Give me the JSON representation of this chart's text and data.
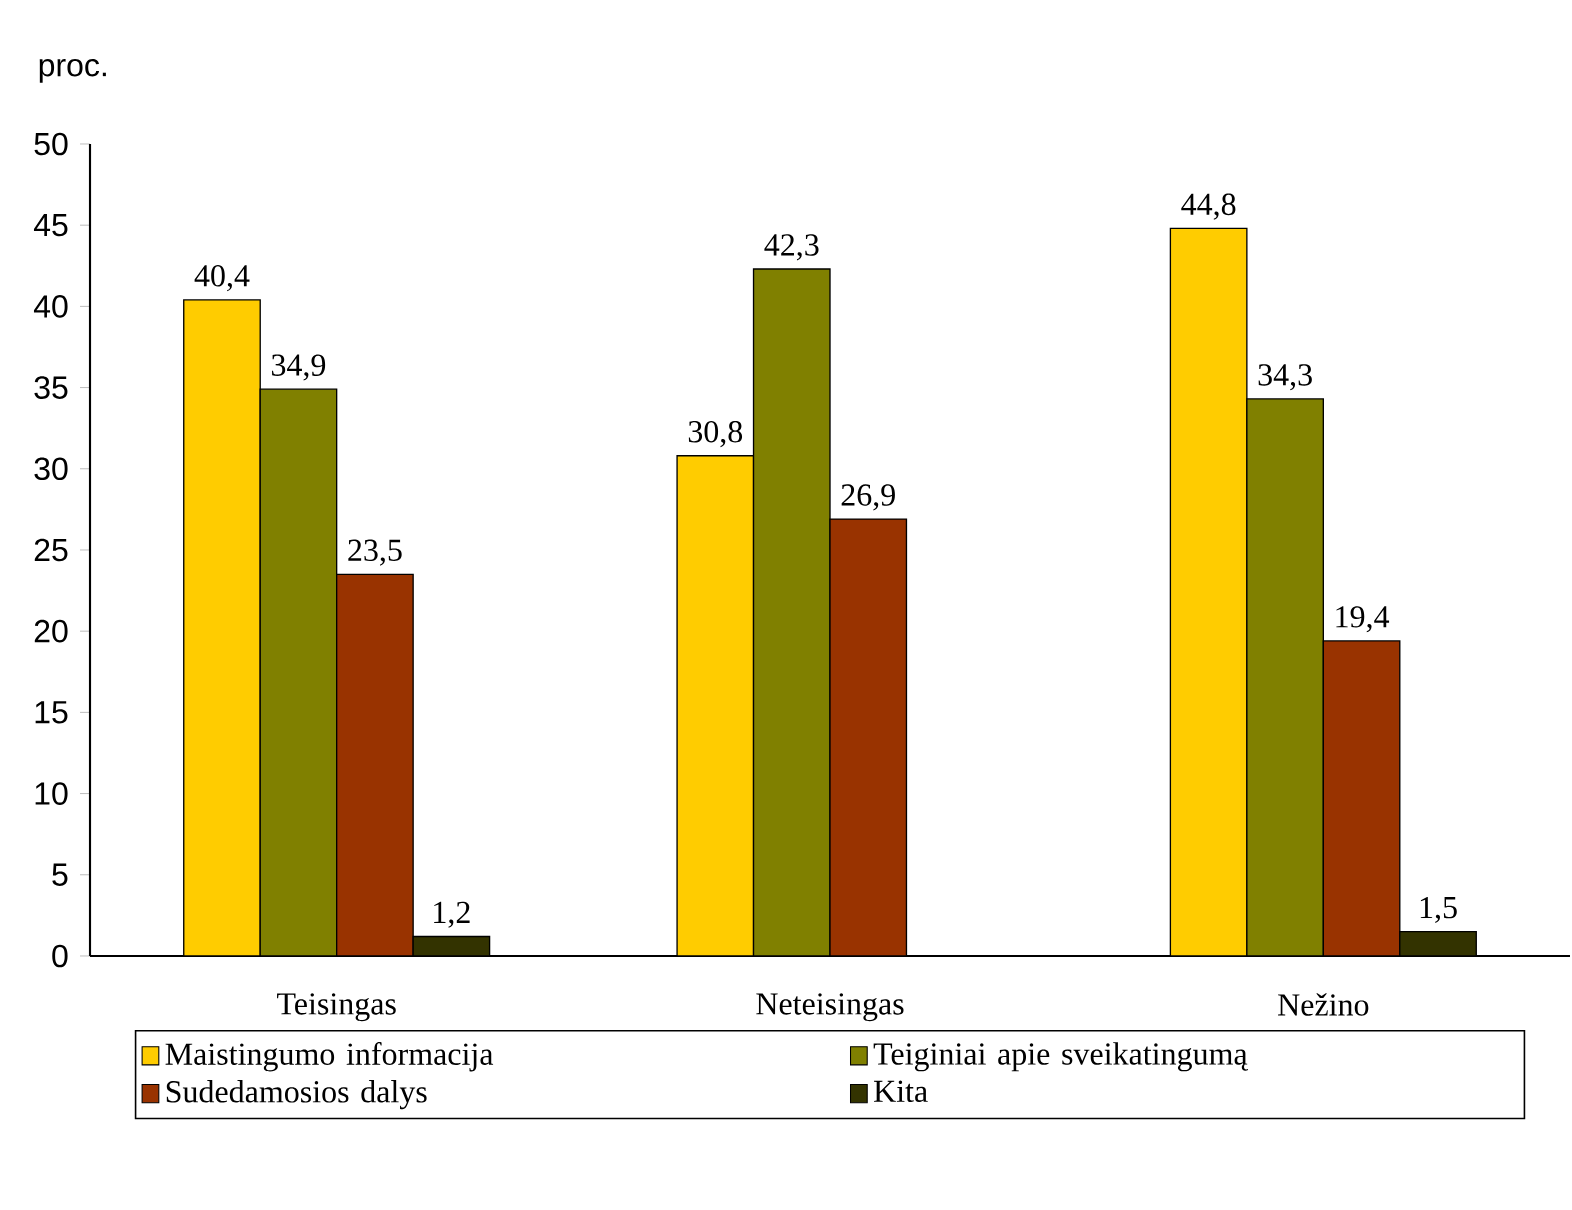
{
  "chart_data": {
    "type": "bar",
    "ylabel": "proc.",
    "categories": [
      "Teisingas",
      "Neteisingas",
      "Nežino"
    ],
    "series": [
      {
        "name": "Maistingumo informacija",
        "color": "#ffcc00",
        "values": [
          40.4,
          30.8,
          44.8
        ],
        "value_labels": [
          "40,4",
          "30,8",
          "44,8"
        ]
      },
      {
        "name": "Teiginiai apie sveikatingumą",
        "color": "#808000",
        "values": [
          34.9,
          42.3,
          34.3
        ],
        "value_labels": [
          "34,9",
          "42,3",
          "34,3"
        ]
      },
      {
        "name": "Sudedamosios dalys",
        "color": "#993300",
        "values": [
          23.5,
          26.9,
          19.4
        ],
        "value_labels": [
          "23,5",
          "26,9",
          "19,4"
        ]
      },
      {
        "name": "Kita",
        "color": "#333300",
        "values": [
          1.2,
          null,
          1.5
        ],
        "value_labels": [
          "1,2",
          null,
          "1,5"
        ]
      }
    ],
    "ylim": [
      0,
      50
    ],
    "yticks": [
      0,
      5,
      10,
      15,
      20,
      25,
      30,
      35,
      40,
      45,
      50
    ],
    "grid": false,
    "legend": "bottom"
  }
}
